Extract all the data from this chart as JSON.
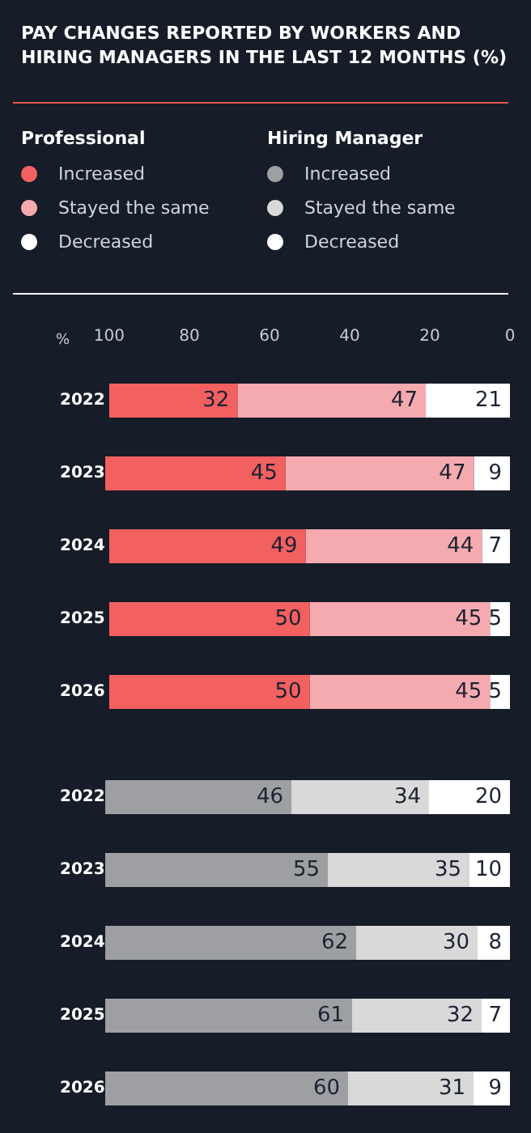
{
  "chart_data": [
    {
      "type": "bar",
      "orientation": "horizontal",
      "stacked": true,
      "title": "PAY CHANGES REPORTED BY WORKERS AND HIRING MANAGERS IN THE LAST 12 MONTHS (%)",
      "legend_title": "Professional",
      "xlabel": "%",
      "categories": [
        "2022",
        "2023",
        "2024",
        "2025",
        "2026"
      ],
      "xlim": [
        101,
        0
      ],
      "xticks": [
        100,
        80,
        60,
        40,
        20,
        0
      ],
      "legend": "top",
      "data_labels": true,
      "grid": false,
      "series": [
        {
          "name": "Decreased",
          "color": "#ffffff",
          "values": [
            21,
            9,
            7,
            5,
            5
          ]
        },
        {
          "name": "Stayed the same",
          "color": "#f5aab0",
          "values": [
            47,
            47,
            44,
            45,
            45
          ]
        },
        {
          "name": "Increased",
          "color": "#f26060",
          "values": [
            32,
            45,
            49,
            50,
            50
          ]
        }
      ]
    },
    {
      "type": "bar",
      "orientation": "horizontal",
      "stacked": true,
      "legend_title": "Hiring Manager",
      "categories": [
        "2022",
        "2023",
        "2024",
        "2025",
        "2026"
      ],
      "xlim": [
        100,
        0
      ],
      "xticks": [
        100,
        80,
        60,
        40,
        20,
        0
      ],
      "tick_labels": "y",
      "legend": "top",
      "data_labels": true,
      "grid": false,
      "series": [
        {
          "name": "Decreased",
          "color": "#ffffff",
          "values": [
            20,
            10,
            8,
            7,
            9
          ]
        },
        {
          "name": "Stayed the same",
          "color": "#d9d9d9",
          "values": [
            34,
            35,
            30,
            32,
            31
          ]
        },
        {
          "name": "Increased",
          "color": "#9d9fa2",
          "values": [
            46,
            55,
            62,
            61,
            60
          ]
        }
      ]
    }
  ]
}
